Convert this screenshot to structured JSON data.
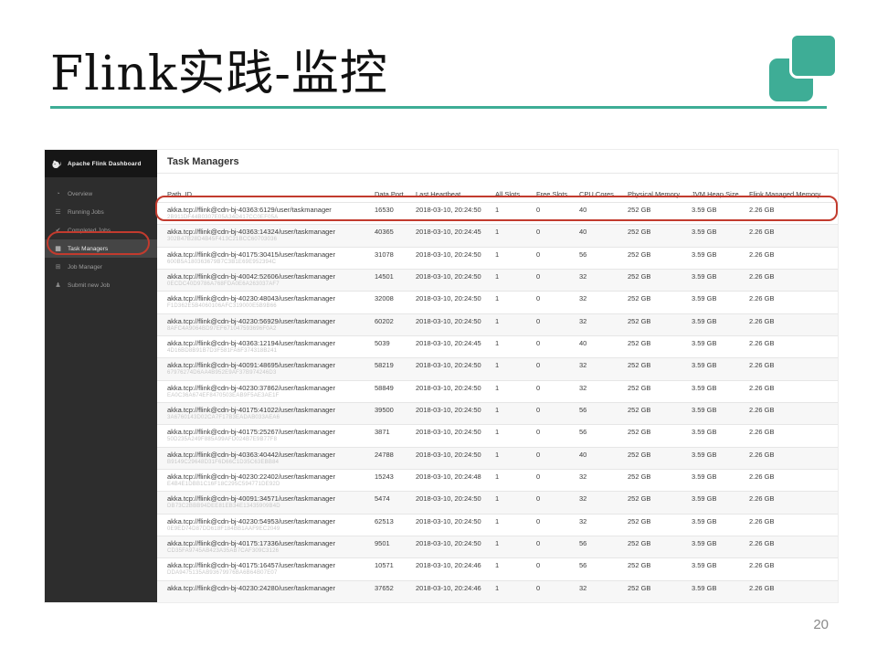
{
  "slide": {
    "title": "Flink实践-监控",
    "page_number": "20"
  },
  "colors": {
    "accent_teal": "#3EAD96",
    "annotation_red": "#C23B2E",
    "sidebar_bg": "#2D2D2D",
    "brand_bg": "#161616"
  },
  "dashboard": {
    "brand": "Apache Flink Dashboard",
    "sidebar": {
      "items": [
        {
          "label": "Overview",
          "icon": "gauge-icon",
          "active": false
        },
        {
          "label": "Running Jobs",
          "icon": "list-icon",
          "active": false
        },
        {
          "label": "Completed Jobs",
          "icon": "check-circle-icon",
          "active": false
        },
        {
          "label": "Task Managers",
          "icon": "bar-chart-icon",
          "active": true
        },
        {
          "label": "Job Manager",
          "icon": "grid-icon",
          "active": false
        },
        {
          "label": "Submit new Job",
          "icon": "user-icon",
          "active": false
        }
      ]
    },
    "page_title": "Task Managers",
    "table": {
      "columns": [
        "Path, ID",
        "Data Port",
        "Last Heartbeat",
        "All Slots",
        "Free Slots",
        "CPU Cores",
        "Physical Memory",
        "JVM Heap Size",
        "Flink Managed Memory"
      ],
      "rows": [
        {
          "path": "akka.tcp://flink@cdn-bj-40363:6129/user/taskmanager",
          "id": "2B911DF44B0307E05A34D417CC0EF05A",
          "data_port": "16530",
          "last_heartbeat": "2018-03-10, 20:24:50",
          "all_slots": "1",
          "free_slots": "0",
          "cpu_cores": "40",
          "physical_memory": "252 GB",
          "jvm_heap_size": "3.59 GB",
          "flink_managed_memory": "2.26 GB",
          "annotated": true
        },
        {
          "path": "akka.tcp://flink@cdn-bj-40363:14324/user/taskmanager",
          "id": "302B47B28D4B45F413C21BCC60703036",
          "data_port": "40365",
          "last_heartbeat": "2018-03-10, 20:24:45",
          "all_slots": "1",
          "free_slots": "0",
          "cpu_cores": "40",
          "physical_memory": "252 GB",
          "jvm_heap_size": "3.59 GB",
          "flink_managed_memory": "2.26 GB",
          "annotated": false
        },
        {
          "path": "akka.tcp://flink@cdn-bj-40175:30415/user/taskmanager",
          "id": "600B5A180363679B7C3B1E69E952394C",
          "data_port": "31078",
          "last_heartbeat": "2018-03-10, 20:24:50",
          "all_slots": "1",
          "free_slots": "0",
          "cpu_cores": "56",
          "physical_memory": "252 GB",
          "jvm_heap_size": "3.59 GB",
          "flink_managed_memory": "2.26 GB",
          "annotated": false
        },
        {
          "path": "akka.tcp://flink@cdn-bj-40042:52606/user/taskmanager",
          "id": "0ECDC40D9786A768FDA0E6A263037AF7",
          "data_port": "14501",
          "last_heartbeat": "2018-03-10, 20:24:50",
          "all_slots": "1",
          "free_slots": "0",
          "cpu_cores": "32",
          "physical_memory": "252 GB",
          "jvm_heap_size": "3.59 GB",
          "flink_managed_memory": "2.26 GB",
          "annotated": false
        },
        {
          "path": "akka.tcp://flink@cdn-bj-40230:48043/user/taskmanager",
          "id": "F1D362E5B4060106AFC319000E5B9B66",
          "data_port": "32008",
          "last_heartbeat": "2018-03-10, 20:24:50",
          "all_slots": "1",
          "free_slots": "0",
          "cpu_cores": "32",
          "physical_memory": "252 GB",
          "jvm_heap_size": "3.59 GB",
          "flink_managed_memory": "2.26 GB",
          "annotated": false
        },
        {
          "path": "akka.tcp://flink@cdn-bj-40230:56929/user/taskmanager",
          "id": "8AFC4A9064BD97EF671047593696F0A2",
          "data_port": "60202",
          "last_heartbeat": "2018-03-10, 20:24:50",
          "all_slots": "1",
          "free_slots": "0",
          "cpu_cores": "32",
          "physical_memory": "252 GB",
          "jvm_heap_size": "3.59 GB",
          "flink_managed_memory": "2.26 GB",
          "annotated": false
        },
        {
          "path": "akka.tcp://flink@cdn-bj-40363:12194/user/taskmanager",
          "id": "4D16BD8B91B7D3F581FA6F374318B241",
          "data_port": "5039",
          "last_heartbeat": "2018-03-10, 20:24:45",
          "all_slots": "1",
          "free_slots": "0",
          "cpu_cores": "40",
          "physical_memory": "252 GB",
          "jvm_heap_size": "3.59 GB",
          "flink_managed_memory": "2.26 GB",
          "annotated": false
        },
        {
          "path": "akka.tcp://flink@cdn-bj-40091:48695/user/taskmanager",
          "id": "67976274D6AA4B952E9AF37B974246D3",
          "data_port": "58219",
          "last_heartbeat": "2018-03-10, 20:24:50",
          "all_slots": "1",
          "free_slots": "0",
          "cpu_cores": "32",
          "physical_memory": "252 GB",
          "jvm_heap_size": "3.59 GB",
          "flink_managed_memory": "2.26 GB",
          "annotated": false
        },
        {
          "path": "akka.tcp://flink@cdn-bj-40230:37862/user/taskmanager",
          "id": "EA0C36A674EF8470503EAB9F5AE3AE1F",
          "data_port": "58849",
          "last_heartbeat": "2018-03-10, 20:24:50",
          "all_slots": "1",
          "free_slots": "0",
          "cpu_cores": "32",
          "physical_memory": "252 GB",
          "jvm_heap_size": "3.59 GB",
          "flink_managed_memory": "2.26 GB",
          "annotated": false
        },
        {
          "path": "akka.tcp://flink@cdn-bj-40175:41022/user/taskmanager",
          "id": "3A6760143D02CA7F17B3EADAB033AEA6",
          "data_port": "39500",
          "last_heartbeat": "2018-03-10, 20:24:50",
          "all_slots": "1",
          "free_slots": "0",
          "cpu_cores": "56",
          "physical_memory": "252 GB",
          "jvm_heap_size": "3.59 GB",
          "flink_managed_memory": "2.26 GB",
          "annotated": false
        },
        {
          "path": "akka.tcp://flink@cdn-bj-40175:25267/user/taskmanager",
          "id": "50D235A249F885A99AFD024B7E9B77F8",
          "data_port": "3871",
          "last_heartbeat": "2018-03-10, 20:24:50",
          "all_slots": "1",
          "free_slots": "0",
          "cpu_cores": "56",
          "physical_memory": "252 GB",
          "jvm_heap_size": "3.59 GB",
          "flink_managed_memory": "2.26 GB",
          "annotated": false
        },
        {
          "path": "akka.tcp://flink@cdn-bj-40363:40442/user/taskmanager",
          "id": "B9149C29648D31F6D66C1D35C63EBB84",
          "data_port": "24788",
          "last_heartbeat": "2018-03-10, 20:24:50",
          "all_slots": "1",
          "free_slots": "0",
          "cpu_cores": "40",
          "physical_memory": "252 GB",
          "jvm_heap_size": "3.59 GB",
          "flink_managed_memory": "2.26 GB",
          "annotated": false
        },
        {
          "path": "akka.tcp://flink@cdn-bj-40230:22402/user/taskmanager",
          "id": "E4B4E1DBB1C16F18C295C594771DE92D",
          "data_port": "15243",
          "last_heartbeat": "2018-03-10, 20:24:48",
          "all_slots": "1",
          "free_slots": "0",
          "cpu_cores": "32",
          "physical_memory": "252 GB",
          "jvm_heap_size": "3.59 GB",
          "flink_managed_memory": "2.26 GB",
          "annotated": false
        },
        {
          "path": "akka.tcp://flink@cdn-bj-40091:34571/user/taskmanager",
          "id": "DB73C2BBB94DEE81EB34E13435909B4D",
          "data_port": "5474",
          "last_heartbeat": "2018-03-10, 20:24:50",
          "all_slots": "1",
          "free_slots": "0",
          "cpu_cores": "32",
          "physical_memory": "252 GB",
          "jvm_heap_size": "3.59 GB",
          "flink_managed_memory": "2.26 GB",
          "annotated": false
        },
        {
          "path": "akka.tcp://flink@cdn-bj-40230:54953/user/taskmanager",
          "id": "0E9ED74D87DD618F184BB1AAF9EC2049",
          "data_port": "62513",
          "last_heartbeat": "2018-03-10, 20:24:50",
          "all_slots": "1",
          "free_slots": "0",
          "cpu_cores": "32",
          "physical_memory": "252 GB",
          "jvm_heap_size": "3.59 GB",
          "flink_managed_memory": "2.26 GB",
          "annotated": false
        },
        {
          "path": "akka.tcp://flink@cdn-bj-40175:17336/user/taskmanager",
          "id": "CD35FA9745AB423A35AB7CAF309C3126",
          "data_port": "9501",
          "last_heartbeat": "2018-03-10, 20:24:50",
          "all_slots": "1",
          "free_slots": "0",
          "cpu_cores": "56",
          "physical_memory": "252 GB",
          "jvm_heap_size": "3.59 GB",
          "flink_managed_memory": "2.26 GB",
          "annotated": false
        },
        {
          "path": "akka.tcp://flink@cdn-bj-40175:16457/user/taskmanager",
          "id": "DDA9475135AB93679976BA6B64B07E07",
          "data_port": "10571",
          "last_heartbeat": "2018-03-10, 20:24:46",
          "all_slots": "1",
          "free_slots": "0",
          "cpu_cores": "56",
          "physical_memory": "252 GB",
          "jvm_heap_size": "3.59 GB",
          "flink_managed_memory": "2.26 GB",
          "annotated": false
        },
        {
          "path": "akka.tcp://flink@cdn-bj-40230:24280/user/taskmanager",
          "id": "",
          "data_port": "37652",
          "last_heartbeat": "2018-03-10, 20:24:46",
          "all_slots": "1",
          "free_slots": "0",
          "cpu_cores": "32",
          "physical_memory": "252 GB",
          "jvm_heap_size": "3.59 GB",
          "flink_managed_memory": "2.26 GB",
          "annotated": false
        }
      ]
    }
  }
}
